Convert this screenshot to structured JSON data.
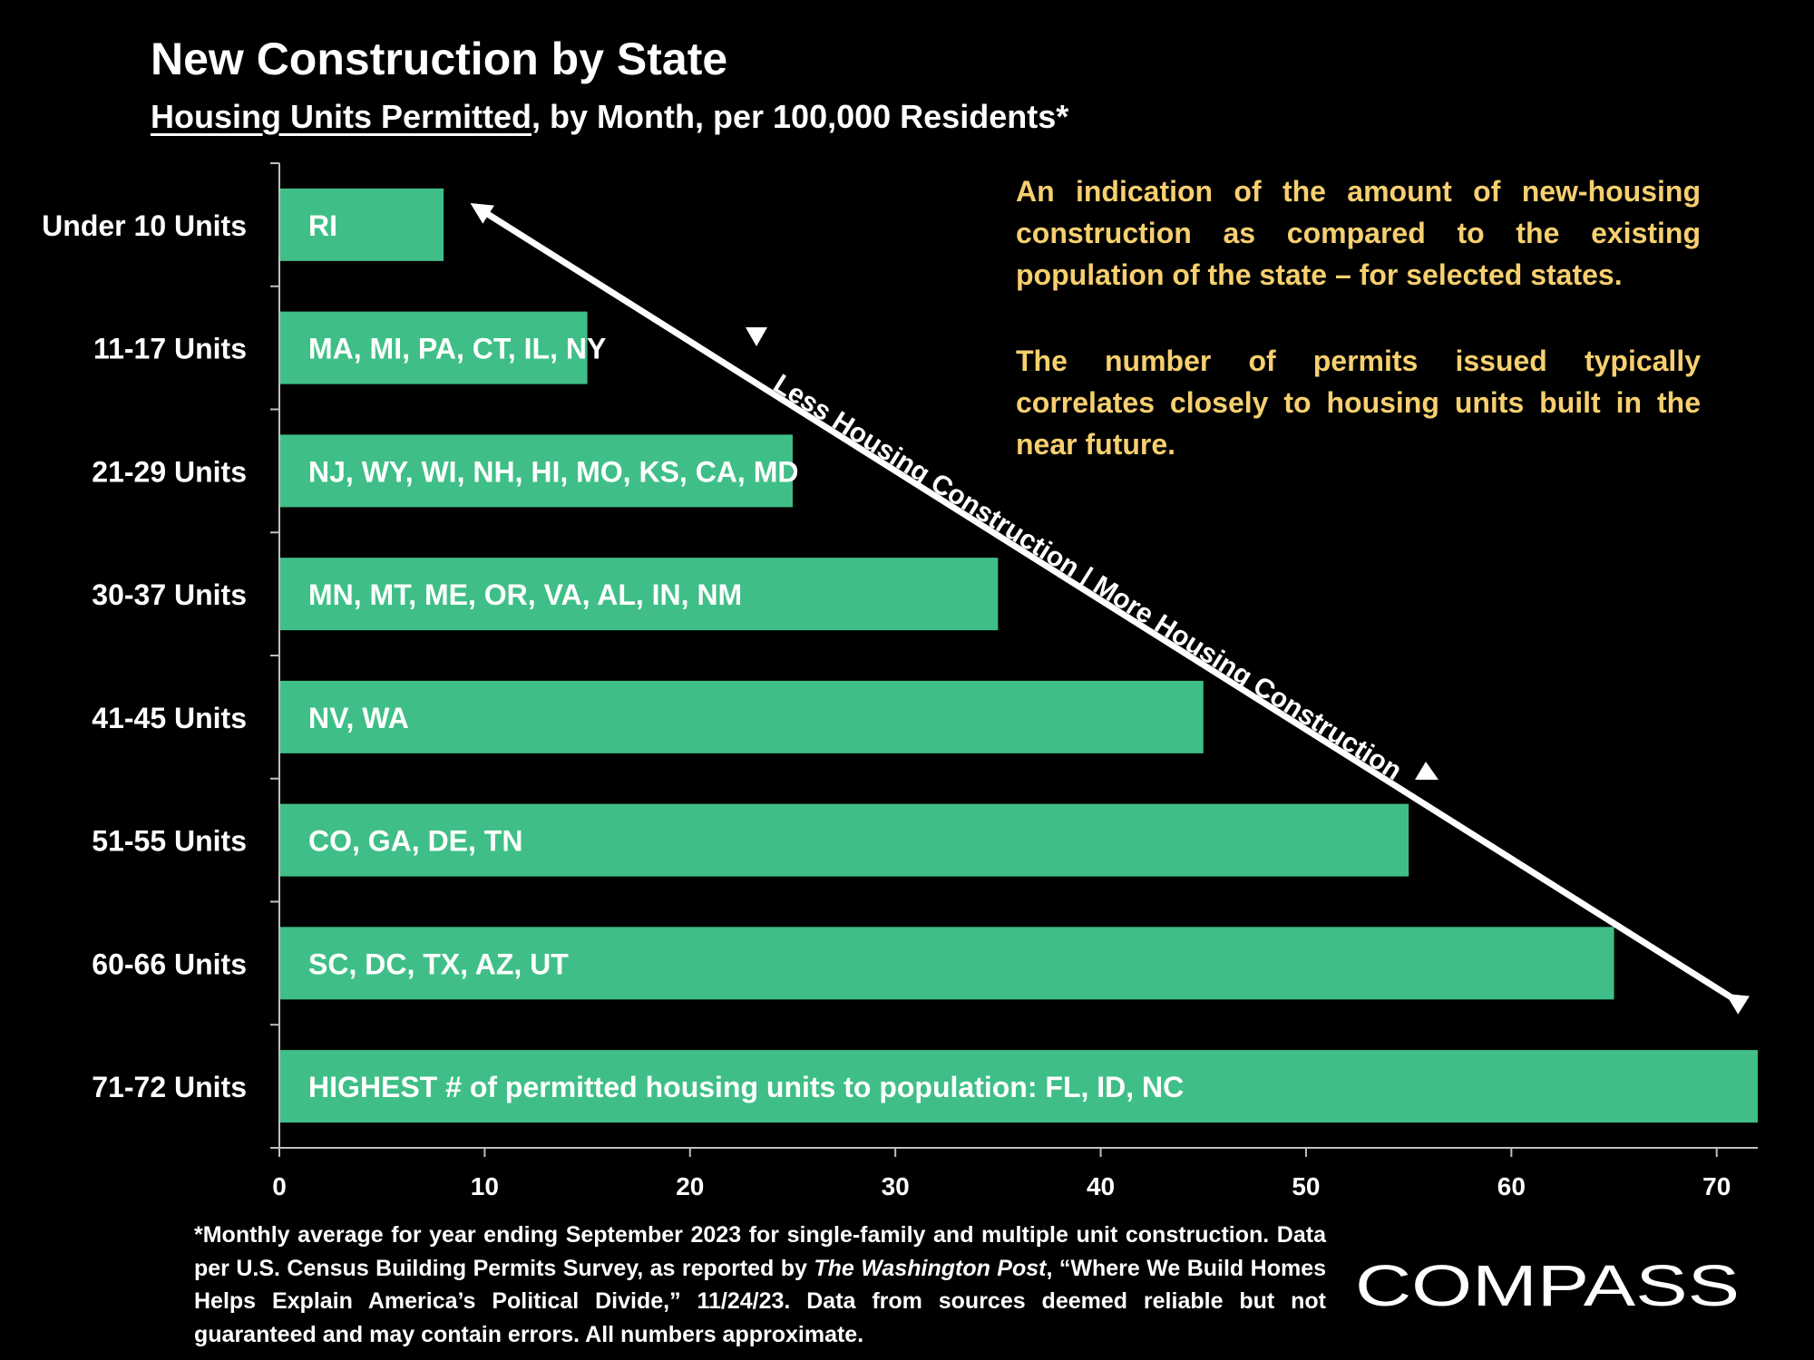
{
  "header": {
    "title": "New Construction by State",
    "subtitle_underlined": "Housing Units Permitted",
    "subtitle_rest": ", by Month, per 100,000 Residents*"
  },
  "chart_data": {
    "type": "bar",
    "orientation": "horizontal",
    "categories": [
      "Under 10 Units",
      "11-17 Units",
      "21-29 Units",
      "30-37 Units",
      "41-45 Units",
      "51-55 Units",
      "60-66 Units",
      "71-72 Units"
    ],
    "values": [
      8,
      15,
      25,
      35,
      45,
      55,
      65,
      72
    ],
    "bar_labels": [
      "RI",
      "MA, MI, PA, CT, IL, NY",
      "NJ, WY, WI, NH, HI, MO, KS, CA, MD",
      "MN, MT, ME, OR, VA, AL, IN, NM",
      "NV, WA",
      "CO, GA, DE, TN",
      "SC, DC,  TX, AZ, UT",
      "HIGHEST # of permitted housing units to population:  FL, ID, NC"
    ],
    "xlim": [
      0,
      72
    ],
    "xticks": [
      0,
      10,
      20,
      30,
      40,
      50,
      60,
      70
    ],
    "bar_color": "#3fbf87",
    "arrow_label": "Less Housing Construction | More Housing Construction",
    "grid": false
  },
  "notes": {
    "para1": "An indication of the amount of new-housing construction as compared to the existing population of the state – for selected states.",
    "para2": "The number of permits issued typically correlates closely to housing units built in the near future."
  },
  "footnote": {
    "part1": "*Monthly average for year ending September 2023 for single-family and multiple unit construction. Data per U.S. Census Building Permits Survey, as reported by ",
    "source": "The Washington Post",
    "part2": ", “Where We Build Homes Helps Explain America’s Political Divide,” 11/24/23. Data from sources deemed reliable but not guaranteed and may contain errors. All numbers approximate."
  },
  "logo": {
    "text": "COMPASS"
  },
  "colors": {
    "background": "#000000",
    "note_text": "#f6cf6f",
    "bar": "#3fbf87",
    "text": "#ffffff"
  }
}
